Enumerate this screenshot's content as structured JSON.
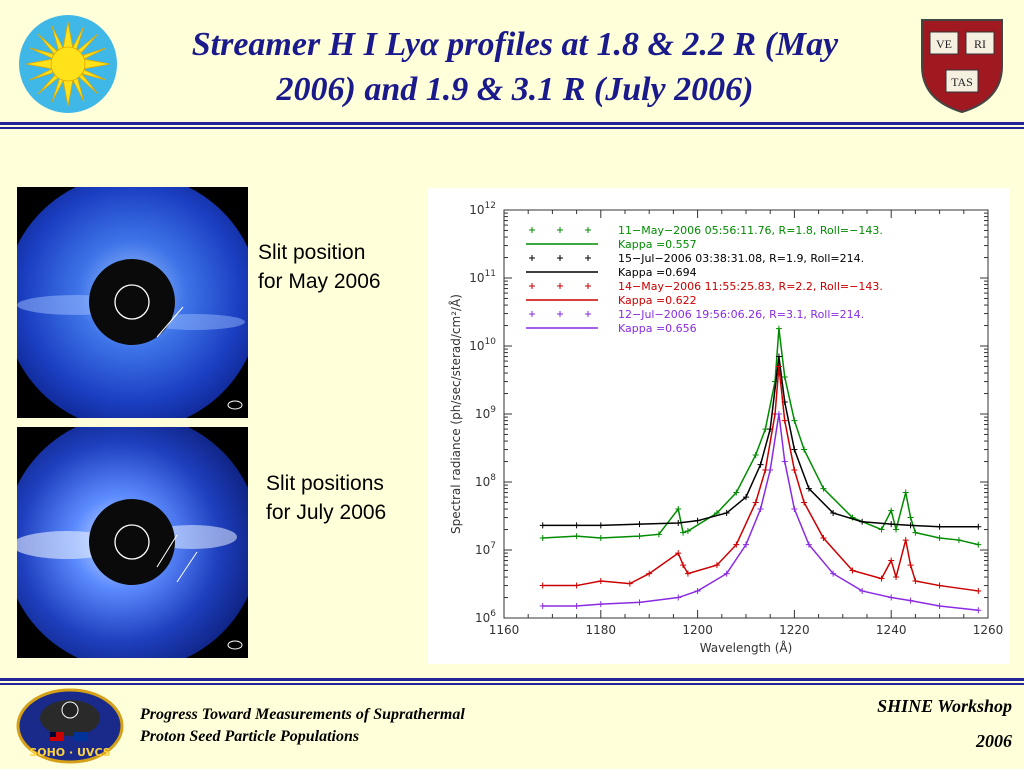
{
  "slide": {
    "title_line1": "Streamer H I Lyα profiles at 1.8 & 2.2 R (May",
    "title_line2": "2006) and 1.9 & 3.1 R (July 2006)",
    "shield_words": [
      "VE",
      "RI",
      "TAS"
    ],
    "logo_sun_icon": "sun-logo-icon",
    "logo_shield_icon": "harvard-shield-icon"
  },
  "images": {
    "caption_may_line1": "Slit position",
    "caption_may_line2": "for May 2006",
    "caption_july_line1": "Slit positions",
    "caption_july_line2": "for July 2006"
  },
  "footer": {
    "left_line1": "Progress Toward Measurements of Suprathermal",
    "left_line2": "Proton Seed Particle Populations",
    "right_line1": "SHINE Workshop",
    "right_line2": "2006",
    "logo_text": "SOHO · UVCS"
  },
  "chart_data": {
    "type": "line",
    "xlabel": "Wavelength (Å)",
    "ylabel": "Spectral radiance (ph/sec/sterad/cm²/Å)",
    "xlim": [
      1160,
      1260
    ],
    "ylim_log10": [
      6,
      12
    ],
    "y_scale": "log",
    "x_ticks": [
      1160,
      1180,
      1200,
      1220,
      1240,
      1260
    ],
    "y_ticks": [
      {
        "value": 6,
        "base": "10",
        "exp": "6"
      },
      {
        "value": 7,
        "base": "10",
        "exp": "7"
      },
      {
        "value": 8,
        "base": "10",
        "exp": "8"
      },
      {
        "value": 9,
        "base": "10",
        "exp": "9"
      },
      {
        "value": 10,
        "base": "10",
        "exp": "10"
      },
      {
        "value": 11,
        "base": "10",
        "exp": "11"
      },
      {
        "value": 12,
        "base": "10",
        "exp": "12"
      }
    ],
    "legend_position": "top-left",
    "series": [
      {
        "name": "11−May−2006  05:56:11.76,  R=1.8,  Roll=−143.",
        "fit_label": "Kappa  =0.557",
        "color": "#008c00",
        "x": [
          1168,
          1175,
          1180,
          1188,
          1192,
          1196,
          1197,
          1198,
          1204,
          1208,
          1212,
          1214,
          1216,
          1216.8,
          1218,
          1220,
          1222,
          1226,
          1232,
          1238,
          1240,
          1241,
          1243,
          1244,
          1245,
          1250,
          1254,
          1258
        ],
        "y": [
          15000000.0,
          16000000.0,
          15000000.0,
          16000000.0,
          17000000.0,
          40000000.0,
          18000000.0,
          19000000.0,
          35000000.0,
          70000000.0,
          250000000.0,
          600000000.0,
          3000000000.0,
          18000000000.0,
          3500000000.0,
          800000000.0,
          300000000.0,
          80000000.0,
          30000000.0,
          20000000.0,
          38000000.0,
          20000000.0,
          70000000.0,
          30000000.0,
          18000000.0,
          15000000.0,
          14000000.0,
          12000000.0
        ]
      },
      {
        "name": "15−Jul−2006  03:38:31.08,  R=1.9,  Roll=214.",
        "fit_label": "Kappa  =0.694",
        "color": "#000000",
        "x": [
          1168,
          1175,
          1180,
          1188,
          1196,
          1200,
          1206,
          1210,
          1213,
          1215,
          1216.8,
          1218,
          1220,
          1223,
          1228,
          1234,
          1240,
          1244,
          1250,
          1258
        ],
        "y": [
          23000000.0,
          23000000.0,
          23000000.0,
          24000000.0,
          25000000.0,
          27000000.0,
          35000000.0,
          60000000.0,
          180000000.0,
          600000000.0,
          7000000000.0,
          1500000000.0,
          300000000.0,
          80000000.0,
          35000000.0,
          26000000.0,
          24000000.0,
          23000000.0,
          22000000.0,
          22000000.0
        ]
      },
      {
        "name": "14−May−2006  11:55:25.83,  R=2.2,  Roll=−143.",
        "fit_label": "Kappa  =0.622",
        "color": "#cc0000",
        "x": [
          1168,
          1175,
          1180,
          1186,
          1190,
          1196,
          1197,
          1198,
          1204,
          1208,
          1212,
          1214,
          1216,
          1216.8,
          1218,
          1220,
          1222,
          1226,
          1232,
          1238,
          1240,
          1241,
          1243,
          1244,
          1245,
          1250,
          1258
        ],
        "y": [
          3000000.0,
          3000000.0,
          3500000.0,
          3200000.0,
          4500000.0,
          9000000.0,
          6000000.0,
          4500000.0,
          6000000.0,
          12000000.0,
          50000000.0,
          150000000.0,
          1000000000.0,
          5000000000.0,
          800000000.0,
          150000000.0,
          50000000.0,
          15000000.0,
          5000000.0,
          3800000.0,
          7000000.0,
          4000000.0,
          14000000.0,
          6000000.0,
          3500000.0,
          3000000.0,
          2500000.0
        ]
      },
      {
        "name": "12−Jul−2006  19:56:06.26,  R=3.1,  Roll=214.",
        "fit_label": "Kappa  =0.656",
        "color": "#8a2be2",
        "x": [
          1168,
          1175,
          1180,
          1188,
          1196,
          1200,
          1206,
          1210,
          1213,
          1215,
          1216.8,
          1218,
          1220,
          1223,
          1228,
          1234,
          1240,
          1244,
          1250,
          1258
        ],
        "y": [
          1500000.0,
          1500000.0,
          1600000.0,
          1700000.0,
          2000000.0,
          2500000.0,
          4500000.0,
          12000000.0,
          40000000.0,
          150000000.0,
          1000000000.0,
          200000000.0,
          40000000.0,
          12000000.0,
          4500000.0,
          2500000.0,
          2000000.0,
          1800000.0,
          1500000.0,
          1300000.0
        ]
      }
    ]
  }
}
